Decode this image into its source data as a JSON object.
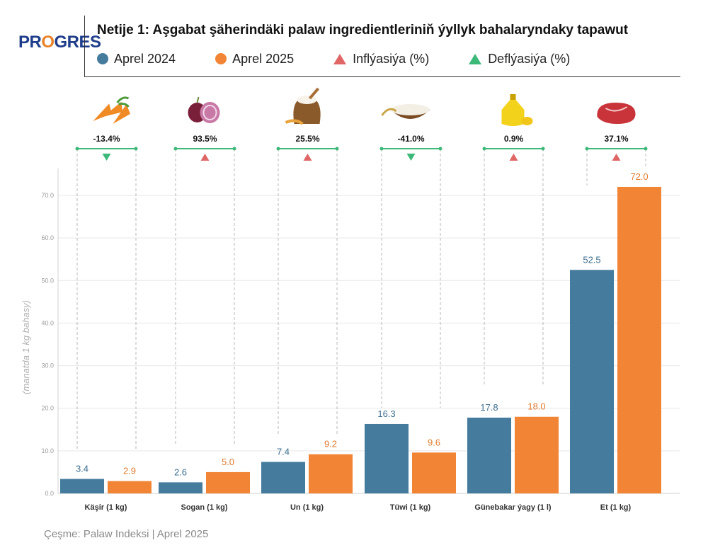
{
  "logo": {
    "text_a": "PR",
    "text_o": "O",
    "text_b": "GRES"
  },
  "title": "Netije 1: Aşgabat şäherindäki palaw ingredientleriniň ýyllyk bahalaryndaky tapawut",
  "legend": [
    {
      "label": "Aprel 2024",
      "shape": "circle",
      "color": "#457b9d"
    },
    {
      "label": "Aprel 2025",
      "shape": "circle",
      "color": "#f28535"
    },
    {
      "label": "Inflýasiýa (%)",
      "shape": "triangle-up",
      "color": "#e06666"
    },
    {
      "label": "Deflýasiýa (%)",
      "shape": "triangle-up",
      "color": "#3cb878"
    }
  ],
  "source": "Çeşme: Palaw Indeksi | Aprel 2025",
  "colors": {
    "series_2024": "#457b9d",
    "series_2025": "#f28535",
    "inflation": "#e06666",
    "deflation": "#3cb878",
    "bracket": "#3cb878"
  },
  "chart_data": {
    "type": "bar",
    "ylabel": "(manatda 1 kg bahasy)",
    "ylim": [
      0,
      70
    ],
    "yticks": [
      "0.0",
      "10.0",
      "20.0",
      "30.0",
      "40.0",
      "50.0",
      "60.0",
      "70.0"
    ],
    "grid": true,
    "categories": [
      "Käşir (1 kg)",
      "Sogan (1 kg)",
      "Un (1 kg)",
      "Tüwi (1 kg)",
      "Günebakar ýagy (1 l)",
      "Et (1 kg)"
    ],
    "series": [
      {
        "name": "Aprel 2024",
        "values": [
          3.4,
          2.6,
          7.4,
          16.3,
          17.8,
          52.5
        ],
        "labels": [
          "3.4",
          "2.6",
          "7.4",
          "16.3",
          "17.8",
          "52.5"
        ]
      },
      {
        "name": "Aprel 2025",
        "values": [
          2.9,
          5.0,
          9.2,
          9.6,
          18.0,
          72.0
        ],
        "labels": [
          "2.9",
          "5.0",
          "9.2",
          "9.6",
          "18.0",
          "72.0"
        ]
      }
    ],
    "change_pct": [
      "-13.4%",
      "93.5%",
      "25.5%",
      "-41.0%",
      "0.9%",
      "37.1%"
    ],
    "change_type": [
      "deflation",
      "inflation",
      "inflation",
      "deflation",
      "inflation",
      "inflation"
    ],
    "icons": [
      "carrot-icon",
      "onion-icon",
      "flour-sack-icon",
      "rice-bowl-icon",
      "oil-bottle-icon",
      "meat-icon"
    ]
  }
}
